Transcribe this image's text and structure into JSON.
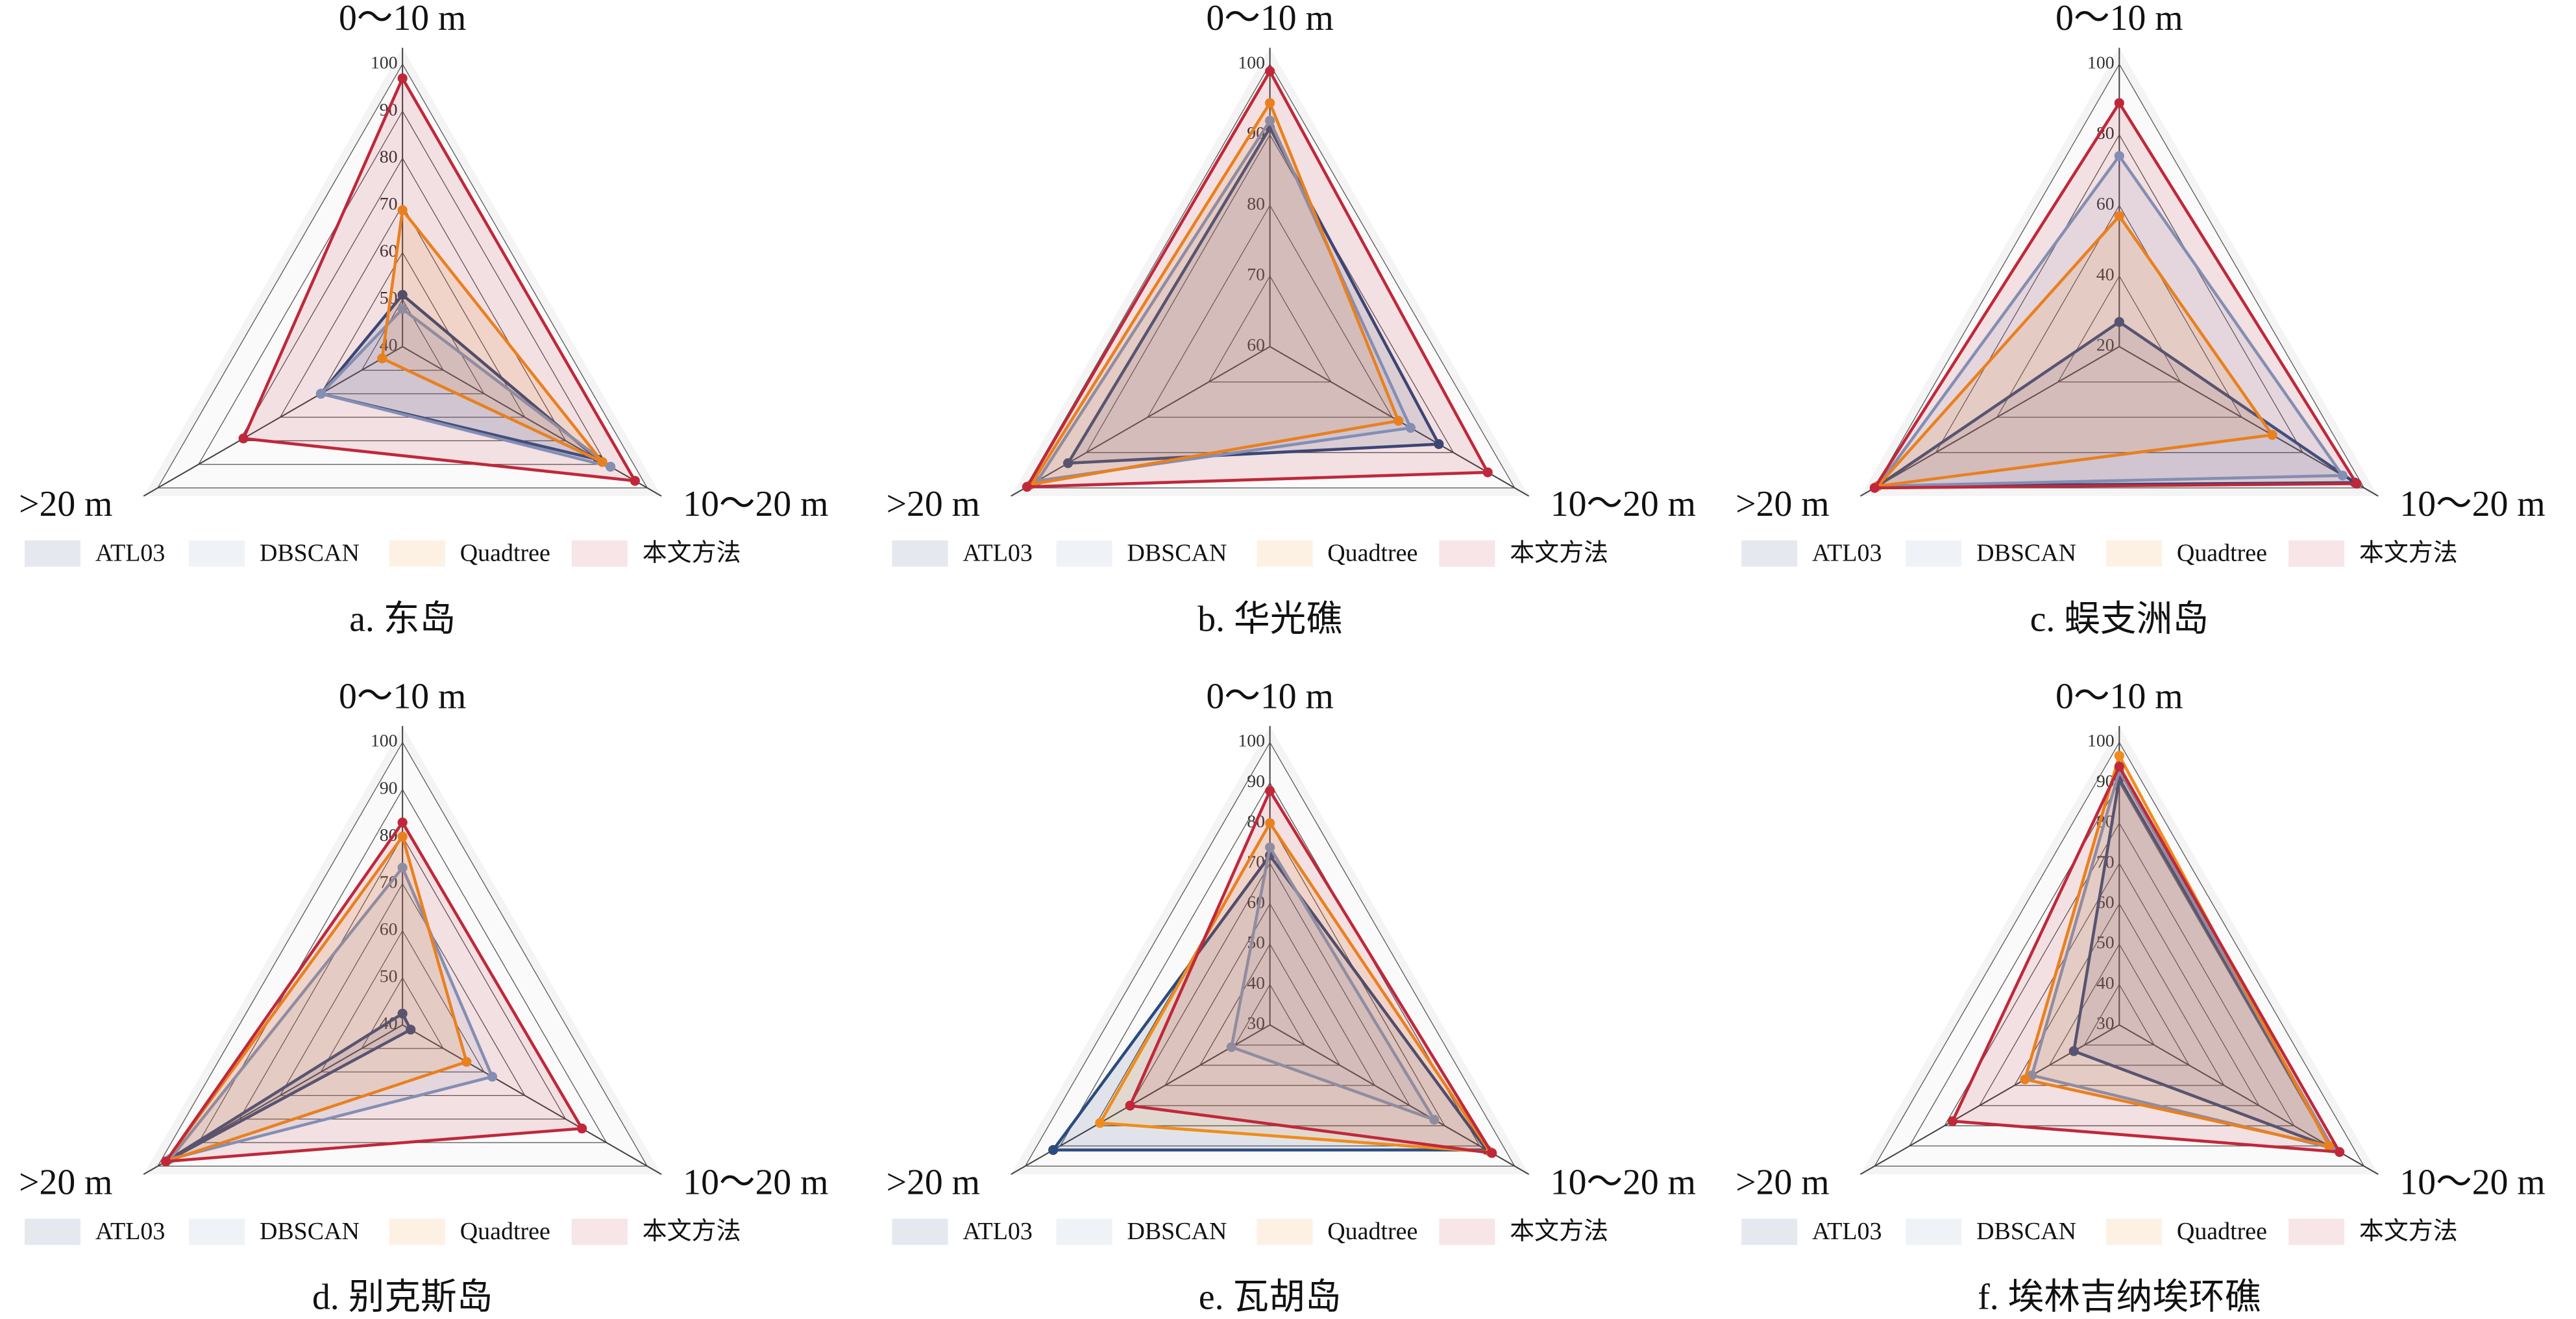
{
  "chart_data": [
    {
      "type": "radar",
      "subtitle": "a. 东岛",
      "axes": [
        "0～10 m",
        "10～20 m",
        ">20 m"
      ],
      "rlim": [
        40,
        100
      ],
      "rticks": [
        40,
        50,
        60,
        70,
        80,
        90,
        100
      ],
      "series": [
        {
          "name": "ATL03",
          "color": "#2b4b7e",
          "values": [
            51,
            88,
            60
          ]
        },
        {
          "name": "DBSCAN",
          "color": "#7d9cc4",
          "values": [
            48,
            91,
            60
          ]
        },
        {
          "name": "Quadtree",
          "color": "#f08c1c",
          "values": [
            69,
            89,
            45
          ]
        },
        {
          "name": "本文方法",
          "color": "#c0283a",
          "values": [
            97,
            97,
            79
          ]
        }
      ]
    },
    {
      "type": "radar",
      "subtitle": "b. 华光礁",
      "axes": [
        "0～10 m",
        "10～20 m",
        ">20 m"
      ],
      "rlim": [
        60,
        100
      ],
      "rticks": [
        60,
        70,
        80,
        90,
        100
      ],
      "series": [
        {
          "name": "ATL03",
          "color": "#2b4b7e",
          "values": [
            91,
            87.6,
            93
          ]
        },
        {
          "name": "DBSCAN",
          "color": "#7d9cc4",
          "values": [
            92,
            83,
            98
          ]
        },
        {
          "name": "Quadtree",
          "color": "#f08c1c",
          "values": [
            94.5,
            81,
            99
          ]
        },
        {
          "name": "本文方法",
          "color": "#c0283a",
          "values": [
            99,
            95.6,
            99.7
          ]
        }
      ]
    },
    {
      "type": "radar",
      "subtitle": "c. 蜈支洲岛",
      "axes": [
        "0～10 m",
        "10～20 m",
        ">20 m"
      ],
      "rlim": [
        20,
        100
      ],
      "rticks": [
        20,
        40,
        60,
        80,
        100
      ],
      "series": [
        {
          "name": "ATL03",
          "color": "#2b4b7e",
          "values": [
            27,
            97,
            99
          ]
        },
        {
          "name": "DBSCAN",
          "color": "#7d9cc4",
          "values": [
            74,
            93,
            99
          ]
        },
        {
          "name": "Quadtree",
          "color": "#f08c1c",
          "values": [
            57,
            70,
            99
          ]
        },
        {
          "name": "本文方法",
          "color": "#c0283a",
          "values": [
            89,
            97.6,
            100
          ]
        }
      ]
    },
    {
      "type": "radar",
      "subtitle": "d. 别克斯岛",
      "axes": [
        "0～10 m",
        "10～20 m",
        ">20 m"
      ],
      "rlim": [
        40,
        100
      ],
      "rticks": [
        40,
        50,
        60,
        70,
        80,
        90,
        100
      ],
      "series": [
        {
          "name": "ATL03",
          "color": "#2b4b7e",
          "values": [
            42.4,
            42,
            98
          ]
        },
        {
          "name": "DBSCAN",
          "color": "#7d9cc4",
          "values": [
            73.4,
            62,
            97
          ]
        },
        {
          "name": "Quadtree",
          "color": "#f08c1c",
          "values": [
            80,
            55.7,
            98
          ]
        },
        {
          "name": "本文方法",
          "color": "#c0283a",
          "values": [
            83,
            84,
            98
          ]
        }
      ]
    },
    {
      "type": "radar",
      "subtitle": "e. 瓦胡岛",
      "axes": [
        "0～10 m",
        "10～20 m",
        ">20 m"
      ],
      "rlim": [
        30,
        100
      ],
      "rticks": [
        30,
        40,
        50,
        60,
        70,
        80,
        90,
        100
      ],
      "series": [
        {
          "name": "ATL03",
          "color": "#2b4b7e",
          "values": [
            72,
            92,
            92
          ]
        },
        {
          "name": "DBSCAN",
          "color": "#7d9cc4",
          "values": [
            74,
            77,
            41
          ]
        },
        {
          "name": "Quadtree",
          "color": "#f08c1c",
          "values": [
            80,
            93,
            78.6
          ]
        },
        {
          "name": "本文方法",
          "color": "#c0283a",
          "values": [
            88,
            93.5,
            70
          ]
        }
      ]
    },
    {
      "type": "radar",
      "subtitle": "f. 埃林吉纳埃环礁",
      "axes": [
        "0～10 m",
        "10～20 m",
        ">20 m"
      ],
      "rlim": [
        30,
        100
      ],
      "rticks": [
        30,
        40,
        50,
        60,
        70,
        80,
        90,
        100
      ],
      "series": [
        {
          "name": "ATL03",
          "color": "#2b4b7e",
          "values": [
            91,
            91,
            43
          ]
        },
        {
          "name": "DBSCAN",
          "color": "#7d9cc4",
          "values": [
            93,
            91,
            55
          ]
        },
        {
          "name": "Quadtree",
          "color": "#f08c1c",
          "values": [
            96.7,
            90,
            57
          ]
        },
        {
          "name": "本文方法",
          "color": "#c0283a",
          "values": [
            94,
            93,
            77.7
          ]
        }
      ]
    }
  ]
}
